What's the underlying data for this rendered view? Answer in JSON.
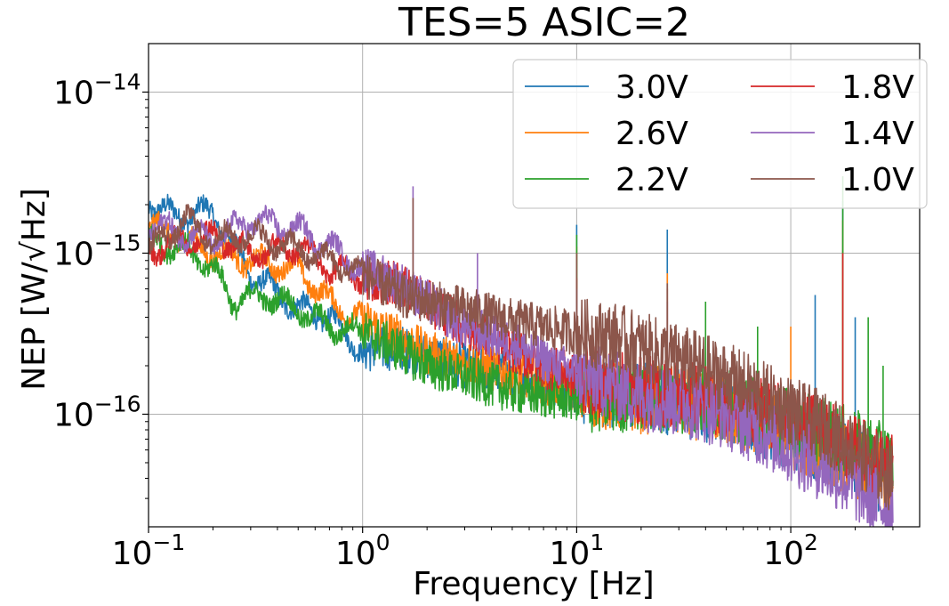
{
  "chart_data": {
    "type": "line",
    "title": "TES=5 ASIC=2",
    "xlabel": "Frequency [Hz]",
    "ylabel": "NEP [W/√Hz]",
    "xscale": "log",
    "yscale": "log",
    "xlim": [
      0.1,
      400
    ],
    "ylim": [
      2e-17,
      2e-14
    ],
    "grid": true,
    "legend_position": "top-right",
    "legend_columns": 2,
    "x_ticks": [
      {
        "value": 0.1,
        "base": "10",
        "exp": "−1"
      },
      {
        "value": 1,
        "base": "10",
        "exp": "0"
      },
      {
        "value": 10,
        "base": "10",
        "exp": "1"
      },
      {
        "value": 100,
        "base": "10",
        "exp": "2"
      }
    ],
    "y_ticks": [
      {
        "value": 1e-16,
        "base": "10",
        "exp": "−16"
      },
      {
        "value": 1e-15,
        "base": "10",
        "exp": "−15"
      },
      {
        "value": 1e-14,
        "base": "10",
        "exp": "−14"
      }
    ],
    "series": [
      {
        "name": "3.0V",
        "color": "#1f77b4",
        "x": [
          0.1,
          0.13,
          0.2,
          0.3,
          0.5,
          0.7,
          1,
          1.5,
          2,
          3,
          5,
          7,
          10,
          15,
          20,
          30,
          50,
          70,
          100,
          150,
          200,
          300
        ],
        "y": [
          2.1e-15,
          1.7e-15,
          1.8e-15,
          7.5e-16,
          4.5e-16,
          4e-16,
          2.5e-16,
          2.6e-16,
          2.3e-16,
          2e-16,
          1.8e-16,
          1.6e-16,
          1.4e-16,
          1.35e-16,
          1.3e-16,
          1.2e-16,
          1.05e-16,
          9e-17,
          7.5e-17,
          6e-17,
          5e-17,
          3.5e-17
        ],
        "spikes": [
          {
            "x": 10,
            "y": 1.5e-15
          },
          {
            "x": 26.5,
            "y": 1.4e-15
          },
          {
            "x": 130,
            "y": 5.5e-16
          },
          {
            "x": 175,
            "y": 2.1e-15
          },
          {
            "x": 200,
            "y": 4e-16
          }
        ]
      },
      {
        "name": "2.6V",
        "color": "#ff7f0e",
        "x": [
          0.1,
          0.2,
          0.3,
          0.5,
          0.7,
          1,
          1.5,
          2,
          3,
          5,
          7,
          10,
          15,
          20,
          30,
          50,
          70,
          100,
          150,
          200,
          300
        ],
        "y": [
          1.5e-15,
          1e-15,
          9e-16,
          8e-16,
          5e-16,
          3.8e-16,
          3e-16,
          2.4e-16,
          2.1e-16,
          1.8e-16,
          1.6e-16,
          1.4e-16,
          1.3e-16,
          1.25e-16,
          1.2e-16,
          1.05e-16,
          9e-17,
          7.5e-17,
          6e-17,
          5e-17,
          3.5e-17
        ],
        "spikes": [
          {
            "x": 10,
            "y": 1.1e-15
          },
          {
            "x": 26.5,
            "y": 7.5e-16
          },
          {
            "x": 100,
            "y": 3.5e-16
          },
          {
            "x": 175,
            "y": 1.6e-15
          }
        ]
      },
      {
        "name": "2.2V",
        "color": "#2ca02c",
        "x": [
          0.1,
          0.15,
          0.2,
          0.25,
          0.35,
          0.5,
          0.7,
          1,
          1.5,
          2,
          3,
          5,
          7,
          10,
          15,
          20,
          30,
          50,
          70,
          100,
          150,
          200,
          300
        ],
        "y": [
          1.2e-15,
          1.05e-15,
          8e-16,
          5e-16,
          5.5e-16,
          4.5e-16,
          3.5e-16,
          3.2e-16,
          2.5e-16,
          2e-16,
          1.7e-16,
          1.4e-16,
          1.3e-16,
          1.25e-16,
          1.25e-16,
          1.3e-16,
          1.25e-16,
          1.15e-16,
          1e-16,
          9e-17,
          7.5e-17,
          6.5e-17,
          5e-17
        ],
        "spikes": [
          {
            "x": 10,
            "y": 1.3e-15
          },
          {
            "x": 40,
            "y": 5e-16
          },
          {
            "x": 70,
            "y": 3.5e-16
          },
          {
            "x": 175,
            "y": 3e-15
          },
          {
            "x": 230,
            "y": 4e-16
          },
          {
            "x": 270,
            "y": 2e-16
          }
        ]
      },
      {
        "name": "1.8V",
        "color": "#d62728",
        "x": [
          0.1,
          0.2,
          0.3,
          0.5,
          0.7,
          1,
          1.5,
          2,
          3,
          5,
          7,
          10,
          15,
          20,
          30,
          50,
          70,
          100,
          150,
          200,
          300
        ],
        "y": [
          1.05e-15,
          1.3e-15,
          1e-15,
          1.1e-15,
          8e-16,
          7e-16,
          6.5e-16,
          5e-16,
          3.5e-16,
          2.5e-16,
          2e-16,
          1.7e-16,
          1.5e-16,
          1.4e-16,
          1.35e-16,
          1.2e-16,
          1.05e-16,
          9e-17,
          7.5e-17,
          6e-17,
          4.5e-17
        ],
        "spikes": [
          {
            "x": 10,
            "y": 7e-16
          },
          {
            "x": 26.5,
            "y": 6e-16
          },
          {
            "x": 175,
            "y": 1e-15
          }
        ]
      },
      {
        "name": "1.4V",
        "color": "#9467bd",
        "x": [
          0.1,
          0.2,
          0.3,
          0.5,
          0.7,
          1,
          1.5,
          2,
          3,
          5,
          7,
          10,
          15,
          20,
          30,
          50,
          70,
          100,
          150,
          200,
          300
        ],
        "y": [
          1.5e-15,
          1.2e-15,
          1.6e-15,
          1.4e-15,
          1.1e-15,
          8e-16,
          6.5e-16,
          5e-16,
          3.5e-16,
          2.8e-16,
          2.2e-16,
          1.8e-16,
          1.5e-16,
          1.3e-16,
          1.2e-16,
          1e-16,
          8e-17,
          6e-17,
          4.5e-17,
          3.5e-17,
          2.5e-17
        ],
        "spikes": [
          {
            "x": 1.72,
            "y": 2.6e-15
          },
          {
            "x": 3.44,
            "y": 1e-15
          },
          {
            "x": 10,
            "y": 6e-16
          },
          {
            "x": 26.5,
            "y": 5e-16
          }
        ]
      },
      {
        "name": "1.0V",
        "color": "#8c564b",
        "x": [
          0.1,
          0.15,
          0.2,
          0.3,
          0.5,
          0.7,
          1,
          1.5,
          2,
          3,
          5,
          7,
          10,
          15,
          20,
          30,
          50,
          70,
          100,
          150,
          200,
          300
        ],
        "y": [
          1.05e-15,
          1.6e-15,
          1.2e-15,
          1.3e-15,
          1.05e-15,
          9e-16,
          7.5e-16,
          5.5e-16,
          5e-16,
          4.5e-16,
          3.8e-16,
          3.5e-16,
          3.2e-16,
          3e-16,
          2.6e-16,
          2.2e-16,
          1.7e-16,
          1.35e-16,
          1.05e-16,
          8e-17,
          6e-17,
          4e-17
        ],
        "spikes": [
          {
            "x": 1.72,
            "y": 2.2e-15
          },
          {
            "x": 10,
            "y": 1e-15
          },
          {
            "x": 26.5,
            "y": 6.5e-16
          }
        ]
      }
    ]
  }
}
